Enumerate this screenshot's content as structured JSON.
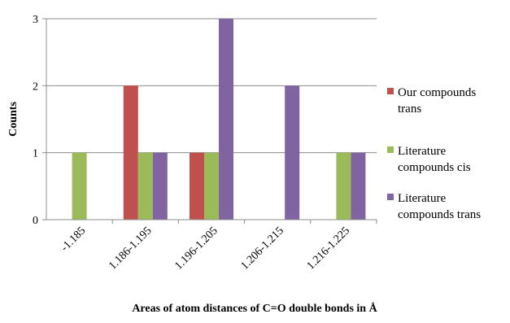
{
  "chart_data": {
    "type": "bar",
    "categories": [
      "-1.185",
      "1.186-1.195",
      "1.196-1.205",
      "1.206-1.215",
      "1.216-1.225"
    ],
    "series": [
      {
        "name": "Our compounds trans",
        "legend_lines": [
          "Our compounds",
          "trans"
        ],
        "color": "#C0504D",
        "values": [
          0,
          2,
          1,
          0,
          0
        ]
      },
      {
        "name": "Literature compounds cis",
        "legend_lines": [
          "Literature",
          "compounds cis"
        ],
        "color": "#9BBB59",
        "values": [
          1,
          1,
          1,
          0,
          1
        ]
      },
      {
        "name": "Literature compounds trans",
        "legend_lines": [
          "Literature",
          "compounds trans"
        ],
        "color": "#8064A2",
        "values": [
          0,
          1,
          3,
          2,
          1
        ]
      }
    ],
    "xlabel": "Areas of atom distances of C=O double bonds in Å",
    "ylabel": "Counts",
    "ylim": [
      0,
      3
    ],
    "yticks": [
      0,
      1,
      2,
      3
    ],
    "grid": true,
    "legend_position": "right"
  }
}
